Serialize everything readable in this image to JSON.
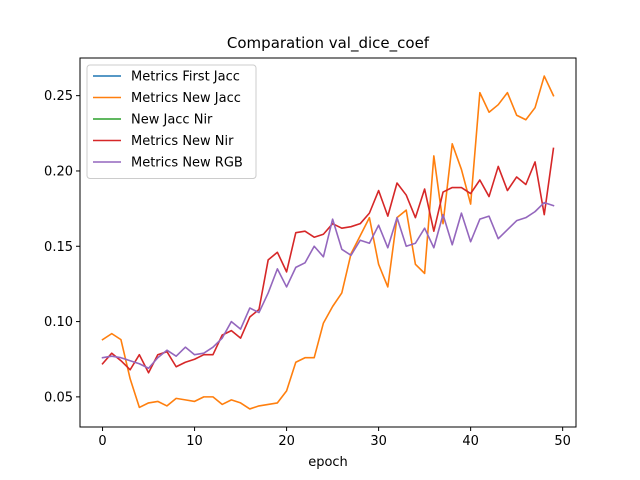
{
  "chart_data": {
    "type": "line",
    "title": "Comparation val_dice_coef",
    "xlabel": "epoch",
    "ylabel": "",
    "xlim": [
      -2.45,
      51.45
    ],
    "ylim": [
      0.03,
      0.275
    ],
    "x_ticks": [
      0,
      10,
      20,
      30,
      40,
      50
    ],
    "y_ticks": [
      0.05,
      0.1,
      0.15,
      0.2,
      0.25
    ],
    "y_tick_labels": [
      "0.05",
      "0.10",
      "0.15",
      "0.20",
      "0.25"
    ],
    "grid": false,
    "legend_position": "upper-left",
    "series": [
      {
        "name": "Metrics First Jacc",
        "color": "#1f77b4",
        "values": []
      },
      {
        "name": "Metrics New Jacc",
        "color": "#ff7f0e",
        "values": [
          0.088,
          0.092,
          0.088,
          0.062,
          0.043,
          0.046,
          0.047,
          0.044,
          0.049,
          0.048,
          0.047,
          0.05,
          0.05,
          0.045,
          0.048,
          0.046,
          0.042,
          0.044,
          0.045,
          0.046,
          0.054,
          0.073,
          0.076,
          0.076,
          0.099,
          0.11,
          0.119,
          0.145,
          0.157,
          0.169,
          0.138,
          0.123,
          0.169,
          0.174,
          0.138,
          0.132,
          0.21,
          0.165,
          0.218,
          0.201,
          0.178,
          0.252,
          0.239,
          0.244,
          0.252,
          0.237,
          0.234,
          0.242,
          0.263,
          0.25
        ]
      },
      {
        "name": "New Jacc Nir",
        "color": "#2ca02c",
        "values": []
      },
      {
        "name": "Metrics New Nir",
        "color": "#d62728",
        "values": [
          0.072,
          0.079,
          0.074,
          0.068,
          0.078,
          0.066,
          0.078,
          0.08,
          0.07,
          0.073,
          0.075,
          0.078,
          0.078,
          0.091,
          0.094,
          0.089,
          0.103,
          0.108,
          0.141,
          0.146,
          0.133,
          0.159,
          0.16,
          0.156,
          0.158,
          0.165,
          0.162,
          0.163,
          0.165,
          0.172,
          0.187,
          0.17,
          0.192,
          0.184,
          0.169,
          0.188,
          0.16,
          0.186,
          0.189,
          0.189,
          0.185,
          0.194,
          0.183,
          0.203,
          0.187,
          0.196,
          0.191,
          0.206,
          0.171,
          0.215
        ]
      },
      {
        "name": "Metrics New RGB",
        "color": "#9467bd",
        "values": [
          0.076,
          0.077,
          0.076,
          0.074,
          0.072,
          0.069,
          0.076,
          0.081,
          0.077,
          0.083,
          0.078,
          0.079,
          0.083,
          0.089,
          0.1,
          0.095,
          0.109,
          0.106,
          0.119,
          0.135,
          0.123,
          0.136,
          0.139,
          0.15,
          0.143,
          0.168,
          0.148,
          0.144,
          0.154,
          0.152,
          0.164,
          0.149,
          0.169,
          0.15,
          0.152,
          0.162,
          0.149,
          0.171,
          0.151,
          0.172,
          0.153,
          0.168,
          0.17,
          0.155,
          0.161,
          0.167,
          0.169,
          0.173,
          0.179,
          0.177
        ]
      }
    ]
  }
}
